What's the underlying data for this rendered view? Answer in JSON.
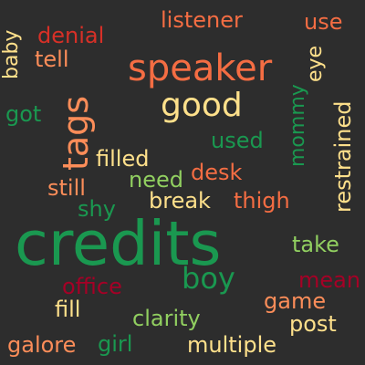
{
  "palette": {
    "background": "#2d2d2d",
    "dark_green": "#1a9850",
    "light_green": "#91cf60",
    "pale_yellow": "#fee08b",
    "orange": "#fc8d59",
    "red_orange": "#d73027",
    "dark_red": "#a50026"
  },
  "words": [
    {
      "text": "credits",
      "color": "#1a9850"
    },
    {
      "text": "speaker",
      "color": "#f46d43"
    },
    {
      "text": "tags",
      "color": "#fc8d59"
    },
    {
      "text": "good",
      "color": "#fee08b"
    },
    {
      "text": "boy",
      "color": "#1a9850"
    },
    {
      "text": "restrained",
      "color": "#fee08b"
    },
    {
      "text": "listener",
      "color": "#f46d43"
    },
    {
      "text": "use",
      "color": "#f46d43"
    },
    {
      "text": "denial",
      "color": "#d73027"
    },
    {
      "text": "baby",
      "color": "#fee08b"
    },
    {
      "text": "tell",
      "color": "#fc8d59"
    },
    {
      "text": "eye",
      "color": "#fee08b"
    },
    {
      "text": "got",
      "color": "#1a9850"
    },
    {
      "text": "mommy",
      "color": "#1a9850"
    },
    {
      "text": "used",
      "color": "#1a9850"
    },
    {
      "text": "filled",
      "color": "#fee08b"
    },
    {
      "text": "desk",
      "color": "#f46d43"
    },
    {
      "text": "need",
      "color": "#91cf60"
    },
    {
      "text": "still",
      "color": "#fc8d59"
    },
    {
      "text": "break",
      "color": "#fee08b"
    },
    {
      "text": "thigh",
      "color": "#f46d43"
    },
    {
      "text": "shy",
      "color": "#1a9850"
    },
    {
      "text": "take",
      "color": "#91cf60"
    },
    {
      "text": "office",
      "color": "#a50026"
    },
    {
      "text": "mean",
      "color": "#a50026"
    },
    {
      "text": "fill",
      "color": "#fee08b"
    },
    {
      "text": "game",
      "color": "#fc8d59"
    },
    {
      "text": "clarity",
      "color": "#91cf60"
    },
    {
      "text": "post",
      "color": "#fee08b"
    },
    {
      "text": "galore",
      "color": "#fc8d59"
    },
    {
      "text": "girl",
      "color": "#1a9850"
    },
    {
      "text": "multiple",
      "color": "#fee08b"
    }
  ]
}
